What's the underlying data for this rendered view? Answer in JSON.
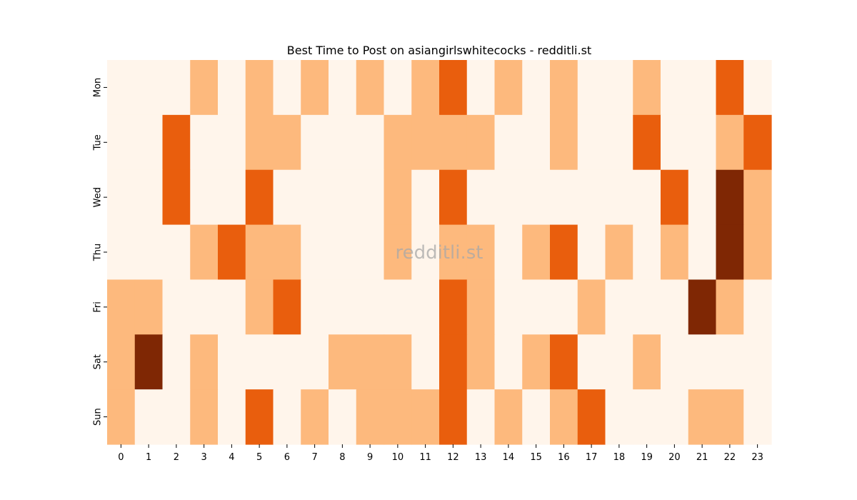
{
  "chart_data": {
    "type": "heatmap",
    "title": "Best Time to Post on asiangirlswhitecocks - redditli.st",
    "watermark": "redditli.st",
    "x_categories": [
      "0",
      "1",
      "2",
      "3",
      "4",
      "5",
      "6",
      "7",
      "8",
      "9",
      "10",
      "11",
      "12",
      "13",
      "14",
      "15",
      "16",
      "17",
      "18",
      "19",
      "20",
      "21",
      "22",
      "23"
    ],
    "y_categories": [
      "Mon",
      "Tue",
      "Wed",
      "Thu",
      "Fri",
      "Sat",
      "Sun"
    ],
    "values": [
      [
        0,
        0,
        0,
        1,
        0,
        1,
        0,
        1,
        0,
        1,
        0,
        1,
        2,
        0,
        1,
        0,
        1,
        0,
        0,
        1,
        0,
        0,
        2,
        0
      ],
      [
        0,
        0,
        2,
        0,
        0,
        1,
        1,
        0,
        0,
        0,
        1,
        1,
        1,
        1,
        0,
        0,
        1,
        0,
        0,
        2,
        0,
        0,
        1,
        2
      ],
      [
        0,
        0,
        2,
        0,
        0,
        2,
        0,
        0,
        0,
        0,
        1,
        0,
        2,
        0,
        0,
        0,
        0,
        0,
        0,
        0,
        2,
        0,
        3,
        1
      ],
      [
        0,
        0,
        0,
        1,
        2,
        1,
        1,
        0,
        0,
        0,
        1,
        0,
        1,
        1,
        0,
        1,
        2,
        0,
        1,
        0,
        1,
        0,
        3,
        1
      ],
      [
        1,
        1,
        0,
        0,
        0,
        1,
        2,
        0,
        0,
        0,
        0,
        0,
        2,
        1,
        0,
        0,
        0,
        1,
        0,
        0,
        0,
        3,
        1,
        0
      ],
      [
        1,
        3,
        0,
        1,
        0,
        0,
        0,
        0,
        1,
        1,
        1,
        0,
        2,
        1,
        0,
        1,
        2,
        0,
        0,
        1,
        0,
        0,
        0,
        0
      ],
      [
        1,
        0,
        0,
        1,
        0,
        2,
        0,
        1,
        0,
        1,
        1,
        1,
        2,
        0,
        1,
        0,
        1,
        2,
        0,
        0,
        0,
        1,
        1,
        0
      ]
    ],
    "color_scale": [
      "#fff5eb",
      "#fdb97d",
      "#e95e0d",
      "#7f2704"
    ],
    "colorbar": false
  }
}
